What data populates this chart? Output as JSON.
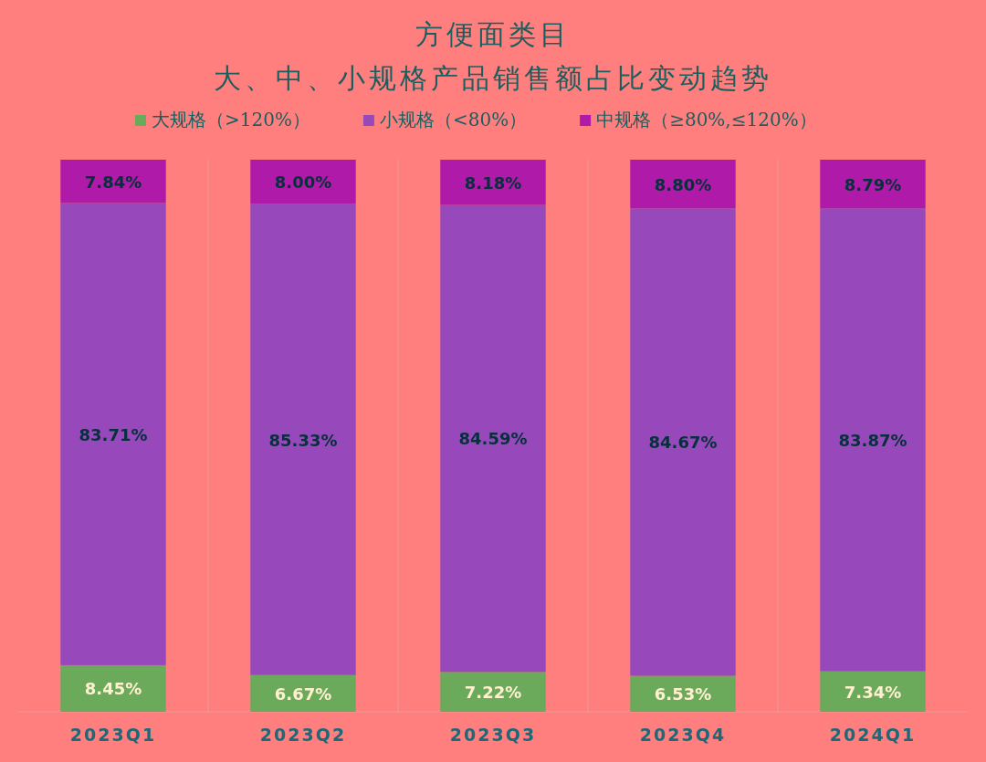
{
  "chart_data": {
    "type": "bar",
    "stacked": true,
    "title": "方便面类目",
    "subtitle": "大、中、小规格产品销售额占比变动趋势",
    "categories": [
      "2023Q1",
      "2023Q2",
      "2023Q3",
      "2023Q4",
      "2024Q1"
    ],
    "legend": "top",
    "series": [
      {
        "name": "大规格（>120%）",
        "color": "#6aaa5a",
        "values": [
          8.45,
          6.67,
          7.22,
          6.53,
          7.34
        ],
        "value_labels": [
          "8.45%",
          "6.67%",
          "7.22%",
          "6.53%",
          "7.34%"
        ]
      },
      {
        "name": "小规格（<80%）",
        "color": "#9748bb",
        "values": [
          83.71,
          85.33,
          84.59,
          84.67,
          83.87
        ],
        "value_labels": [
          "83.71%",
          "85.33%",
          "84.59%",
          "84.67%",
          "83.87%"
        ]
      },
      {
        "name": "中规格（≥80%,≤120%）",
        "color": "#b01aa8",
        "values": [
          7.84,
          8.0,
          8.18,
          8.8,
          8.79
        ],
        "value_labels": [
          "7.84%",
          "8.00%",
          "8.18%",
          "8.80%",
          "8.79%"
        ]
      }
    ]
  }
}
